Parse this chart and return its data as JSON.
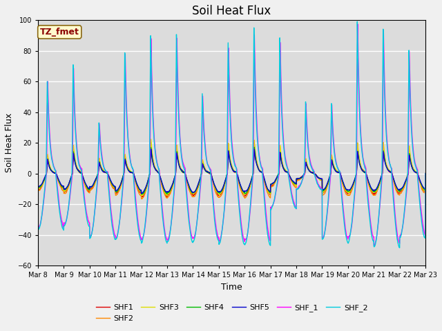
{
  "title": "Soil Heat Flux",
  "xlabel": "Time",
  "ylabel": "Soil Heat Flux",
  "ylim": [
    -60,
    100
  ],
  "days": 15,
  "x_tick_labels": [
    "Mar 8",
    "Mar 9",
    "Mar 10",
    "Mar 11",
    "Mar 12",
    "Mar 13",
    "Mar 14",
    "Mar 15",
    "Mar 16",
    "Mar 17",
    "Mar 18",
    "Mar 19",
    "Mar 20",
    "Mar 21",
    "Mar 22",
    "Mar 23"
  ],
  "annotation_text": "TZ_fmet",
  "annotation_color": "#8B0000",
  "annotation_bg": "#FFFACD",
  "annotation_edge": "#8B6914",
  "series_colors": {
    "SHF1": "#dd0000",
    "SHF2": "#ff8800",
    "SHF3": "#dddd00",
    "SHF4": "#00bb00",
    "SHF5": "#0000cc",
    "SHF_1": "#ff00ff",
    "SHF_2": "#00ccdd"
  },
  "background_color": "#dcdcdc",
  "fig_facecolor": "#f0f0f0",
  "title_fontsize": 12,
  "tick_fontsize": 7,
  "ylabel_fontsize": 9,
  "xlabel_fontsize": 9,
  "legend_fontsize": 8,
  "linewidth": 1.0,
  "day_peaks_large": [
    60,
    70,
    33,
    79,
    90,
    90,
    52,
    84,
    93,
    87,
    46,
    45,
    98,
    94,
    80
  ],
  "day_negs_large": [
    35,
    33,
    41,
    42,
    43,
    43,
    42,
    44,
    44,
    22,
    10,
    42,
    42,
    46,
    40
  ],
  "day_peaks_small": [
    10,
    15,
    8,
    10,
    18,
    15,
    7,
    16,
    18,
    15,
    8,
    10,
    16,
    16,
    14
  ],
  "day_negs_small": [
    10,
    12,
    10,
    13,
    15,
    14,
    14,
    14,
    14,
    8,
    4,
    13,
    13,
    13,
    12
  ]
}
